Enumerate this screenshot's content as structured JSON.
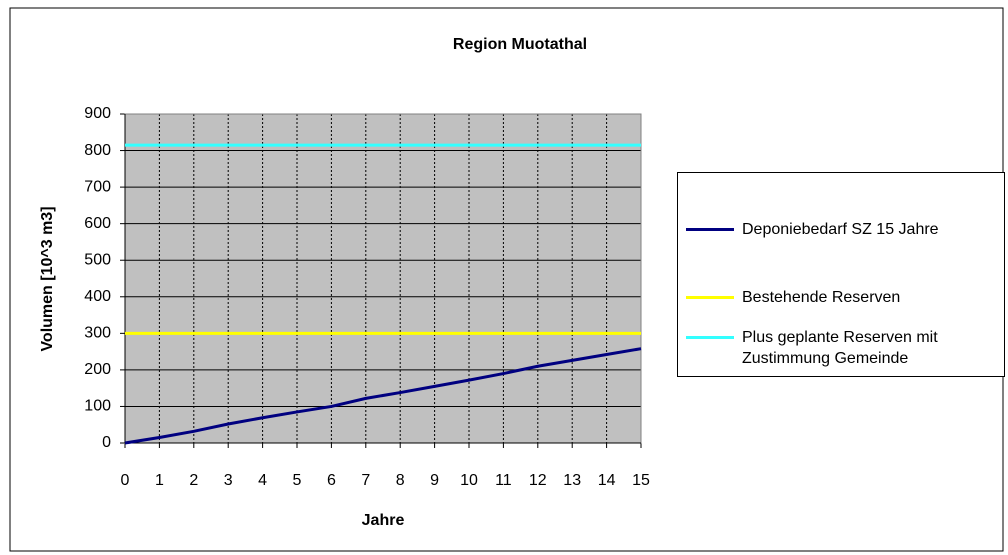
{
  "chart_data": {
    "type": "line",
    "title": "Region Muotathal",
    "x_label": "Jahre",
    "y_label": "Volumen [10^3 m3]",
    "x": [
      0,
      1,
      2,
      3,
      4,
      5,
      6,
      7,
      8,
      9,
      10,
      11,
      12,
      13,
      14,
      15
    ],
    "series": [
      {
        "name": "Deponiebedarf SZ 15 Jahre",
        "color": "#000080",
        "values": [
          0,
          15,
          32,
          52,
          69,
          85,
          100,
          122,
          138,
          155,
          172,
          190,
          210,
          226,
          242,
          258
        ]
      },
      {
        "name": "Bestehende Reserven",
        "color": "#ffff00",
        "values": [
          300,
          300,
          300,
          300,
          300,
          300,
          300,
          300,
          300,
          300,
          300,
          300,
          300,
          300,
          300,
          300
        ]
      },
      {
        "name": "Plus geplante Reserven mit Zustimmung Gemeinde",
        "color": "#33ffff",
        "values": [
          815,
          815,
          815,
          815,
          815,
          815,
          815,
          815,
          815,
          815,
          815,
          815,
          815,
          815,
          815,
          815
        ]
      }
    ],
    "xlim": [
      0,
      15
    ],
    "xticks": [
      0,
      1,
      2,
      3,
      4,
      5,
      6,
      7,
      8,
      9,
      10,
      11,
      12,
      13,
      14,
      15
    ],
    "ylim": [
      0,
      900
    ],
    "yticks": [
      0,
      100,
      200,
      300,
      400,
      500,
      600,
      700,
      800,
      900
    ],
    "grid": true,
    "plot_background": "#c0c0c0",
    "legend": "right"
  }
}
